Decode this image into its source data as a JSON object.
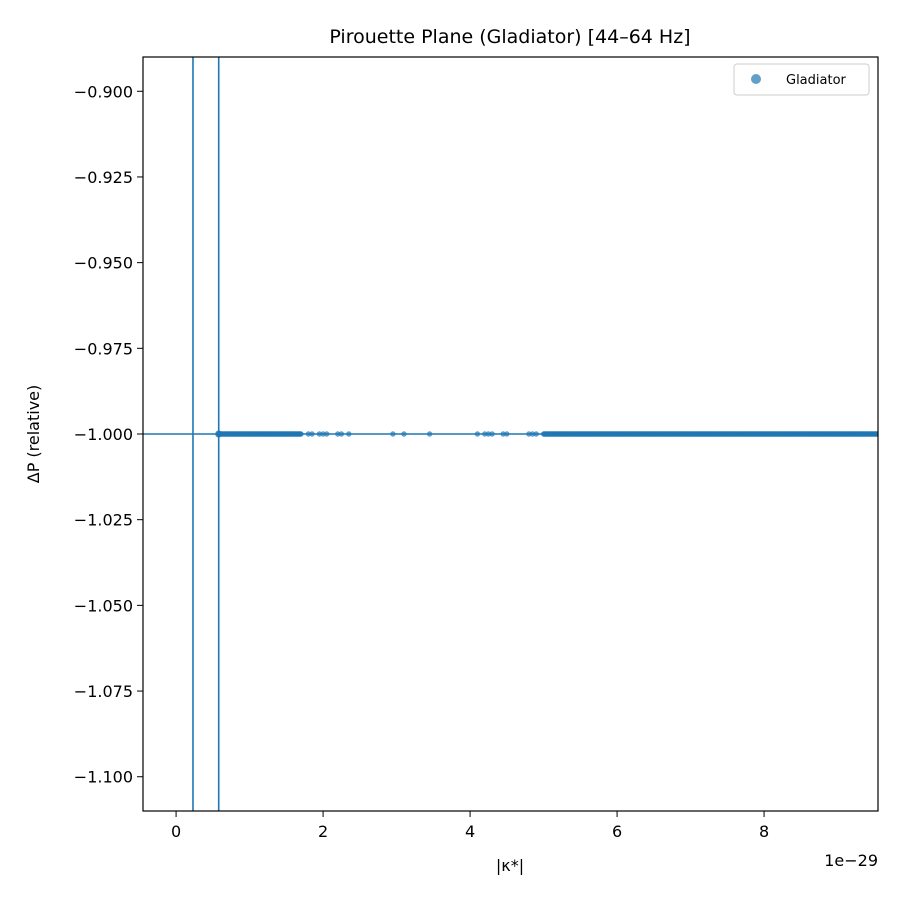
{
  "chart_data": {
    "type": "scatter",
    "title": "Pirouette Plane (Gladiator)  [44–64 Hz]",
    "xlabel": "|κ*|",
    "ylabel": "ΔP (relative)",
    "x_offset_text": "1e−29",
    "x_scale_exponent": -29,
    "xlim": [
      -0.45,
      9.55
    ],
    "ylim": [
      -1.11,
      -0.89
    ],
    "x_ticks": [
      0,
      2,
      4,
      6,
      8
    ],
    "x_tick_labels": [
      "0",
      "2",
      "4",
      "6",
      "8"
    ],
    "y_ticks": [
      -0.9,
      -0.925,
      -0.95,
      -0.975,
      -1.0,
      -1.025,
      -1.05,
      -1.075,
      -1.1
    ],
    "y_tick_labels": [
      "−0.900",
      "−0.925",
      "−0.950",
      "−0.975",
      "−1.000",
      "−1.025",
      "−1.050",
      "−1.075",
      "−1.100"
    ],
    "grid": false,
    "legend_position": "top-right",
    "series": [
      {
        "name": "Gladiator",
        "color": "#1f77b4",
        "y_value": -1.0,
        "x_dense_ranges": [
          [
            0.58,
            1.7
          ],
          [
            5.0,
            9.55
          ]
        ],
        "x_isolated": [
          1.8,
          1.85,
          1.95,
          2.0,
          2.05,
          2.2,
          2.25,
          2.35,
          2.95,
          3.1,
          3.45,
          4.1,
          4.2,
          4.25,
          4.3,
          4.45,
          4.5,
          4.8,
          4.85,
          4.9
        ]
      }
    ],
    "reference_lines": {
      "vertical_x": [
        0.23,
        0.58
      ],
      "horizontal_y": [
        -1.0
      ],
      "color": "#1f77b4"
    }
  }
}
